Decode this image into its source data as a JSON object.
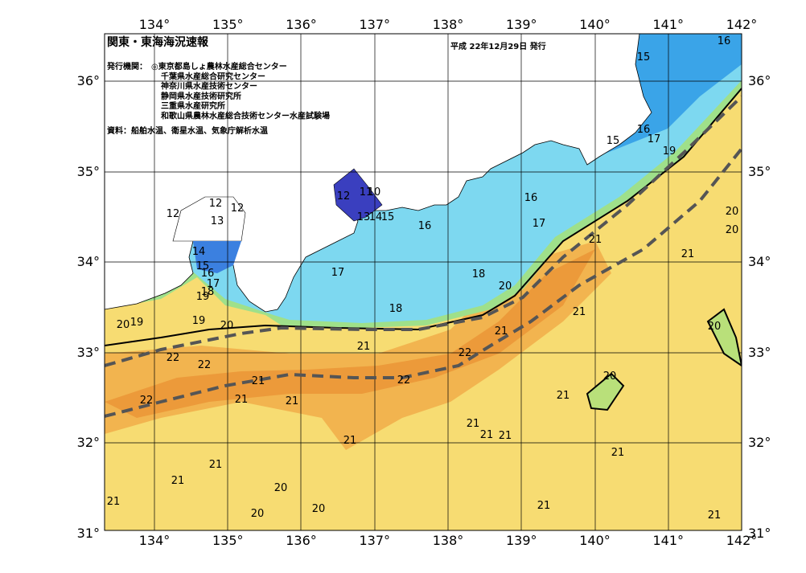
{
  "header": {
    "title": "関東・東海海況速報",
    "date": "平成 22年12月29日 発行",
    "issuer_label": "発行機関：",
    "issuers": [
      "◎東京都島しょ農林水産総合センター",
      "千葉県水産総合研究センター",
      "神奈川県水産技術センター",
      "静岡県水産技術研究所",
      "三重県水産研究所",
      "和歌山県農林水産総合技術センター水産試験場"
    ],
    "source": "資料：船舶水温、衛星水温、気象庁解析水温"
  },
  "map": {
    "lon_labels": [
      "134°",
      "135°",
      "136°",
      "137°",
      "138°",
      "139°",
      "140°",
      "141°",
      "142°"
    ],
    "lat_labels": [
      "36°",
      "35°",
      "34°",
      "33°",
      "32°",
      "31°"
    ],
    "contour_labels": [
      "12",
      "12",
      "12",
      "13",
      "14",
      "15",
      "16",
      "17",
      "18",
      "19",
      "19",
      "20",
      "20",
      "19",
      "12",
      "11",
      "10",
      "13",
      "14",
      "15",
      "16",
      "16",
      "17",
      "17",
      "18",
      "18",
      "20",
      "21",
      "21",
      "21",
      "21",
      "21",
      "22",
      "22",
      "22",
      "21",
      "22",
      "21",
      "21",
      "22",
      "21",
      "20",
      "21",
      "21",
      "21",
      "21",
      "21",
      "21",
      "21",
      "21",
      "20",
      "20",
      "20",
      "21",
      "21",
      "20",
      "20",
      "20",
      "15",
      "16",
      "15",
      "16",
      "17",
      "19"
    ]
  }
}
